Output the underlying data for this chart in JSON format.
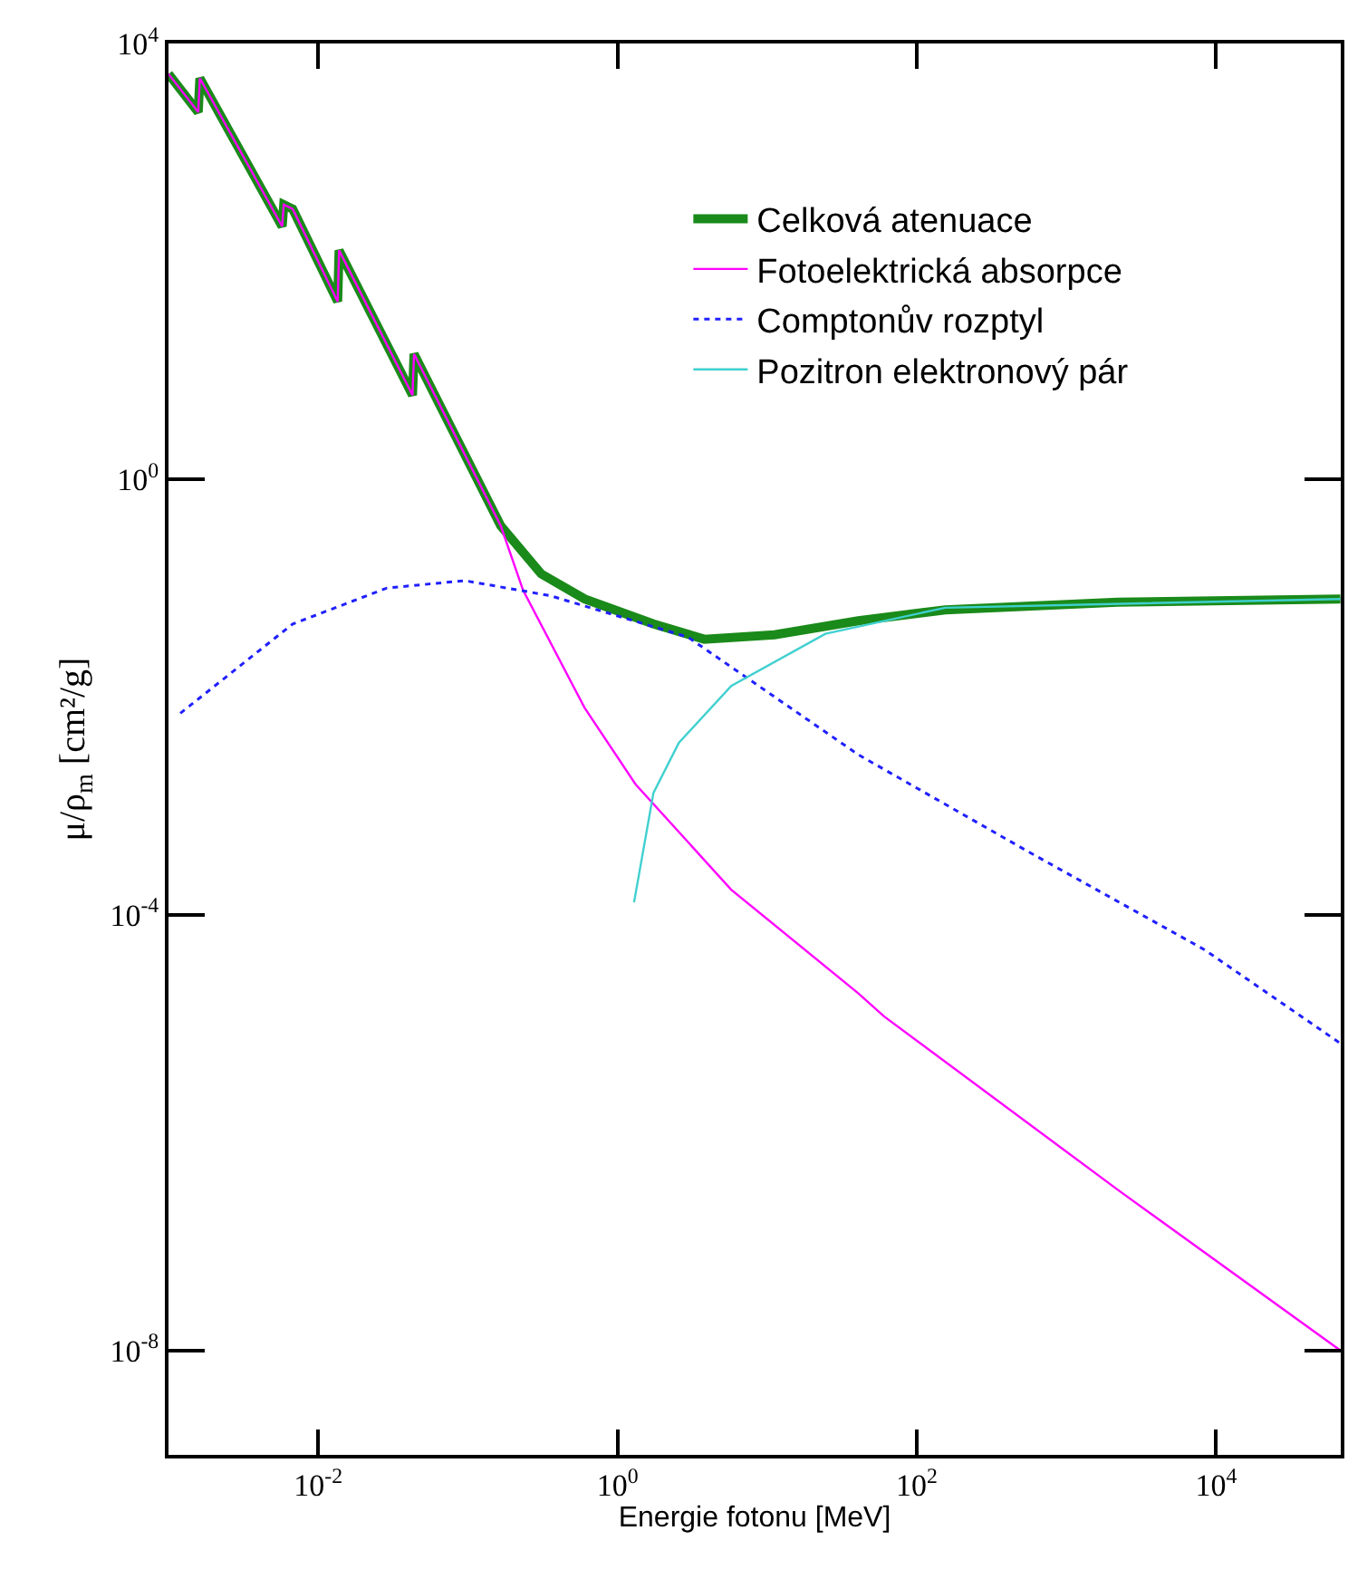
{
  "chart_data": {
    "type": "line",
    "xlabel": "Energie fotonu [MeV]",
    "ylabel": "μ/ρ$_{m}$ [cm²/g]",
    "log": "xy",
    "xlim": [
      0.001,
      68000
    ],
    "ylim": [
      1.1e-09,
      10000
    ],
    "xticks": [
      {
        "value": 0.01,
        "label": "10$^{-2}$"
      },
      {
        "value": 1,
        "label": "10$^{0}$"
      },
      {
        "value": 100,
        "label": "10$^{2}$"
      },
      {
        "value": 10000,
        "label": "10$^{4}$"
      }
    ],
    "yticks": [
      {
        "value": 1e-08,
        "label": "10$^{-8}$"
      },
      {
        "value": 0.0001,
        "label": "10$^{-4}$"
      },
      {
        "value": 1,
        "label": "10$^{0}$"
      },
      {
        "value": 10000,
        "label": "10$^{4}$"
      }
    ],
    "legend": "top right",
    "series": [
      {
        "name": "Celková atenuace",
        "color": "#1a8a1a",
        "line_style": "solid",
        "x": [
          0.001,
          0.00158,
          0.00162,
          0.00575,
          0.00589,
          0.00676,
          0.0135,
          0.0138,
          0.0427,
          0.0437,
          0.166,
          0.309,
          0.603,
          1.74,
          3.8,
          11.2,
          40.7,
          155,
          2190,
          67600
        ],
        "values": [
          5250,
          2340,
          4790,
          209,
          331,
          302,
          42.7,
          126,
          5.89,
          14.1,
          0.372,
          0.135,
          0.0794,
          0.0468,
          0.0339,
          0.0372,
          0.0501,
          0.0631,
          0.0741,
          0.0794
        ]
      },
      {
        "name": "Fotoelektrická absorpce",
        "color": "#ff00ff",
        "line_style": "solid",
        "x": [
          0.001,
          0.00158,
          0.00162,
          0.00575,
          0.00589,
          0.00676,
          0.0135,
          0.0138,
          0.0427,
          0.0437,
          0.166,
          0.234,
          0.603,
          1.32,
          5.75,
          40.7,
          60.3,
          2190,
          67600
        ],
        "values": [
          5250,
          2340,
          4790,
          209,
          331,
          302,
          42.7,
          126,
          5.89,
          14.1,
          0.372,
          0.0955,
          0.00794,
          0.00158,
          0.00017,
          1.9e-05,
          1.17e-05,
          3e-07,
          1e-08
        ]
      },
      {
        "name": "Comptonův rozptyl",
        "color": "#2020ff",
        "line_style": "dotted",
        "x": [
          0.0012,
          0.00676,
          0.0288,
          0.0955,
          0.355,
          2.95,
          40.7,
          575,
          8320,
          67600
        ],
        "values": [
          0.00708,
          0.0468,
          0.1,
          0.117,
          0.0851,
          0.0355,
          0.00295,
          0.00037,
          4.8e-05,
          6.6e-06
        ]
      },
      {
        "name": "Pozitron elektronový pár",
        "color": "#40d0d0",
        "line_style": "solid",
        "x": [
          1.29,
          1.74,
          2.57,
          5.75,
          24.5,
          155,
          67600
        ],
        "values": [
          0.00013,
          0.00132,
          0.0038,
          0.0126,
          0.038,
          0.066,
          0.0794
        ]
      }
    ]
  }
}
